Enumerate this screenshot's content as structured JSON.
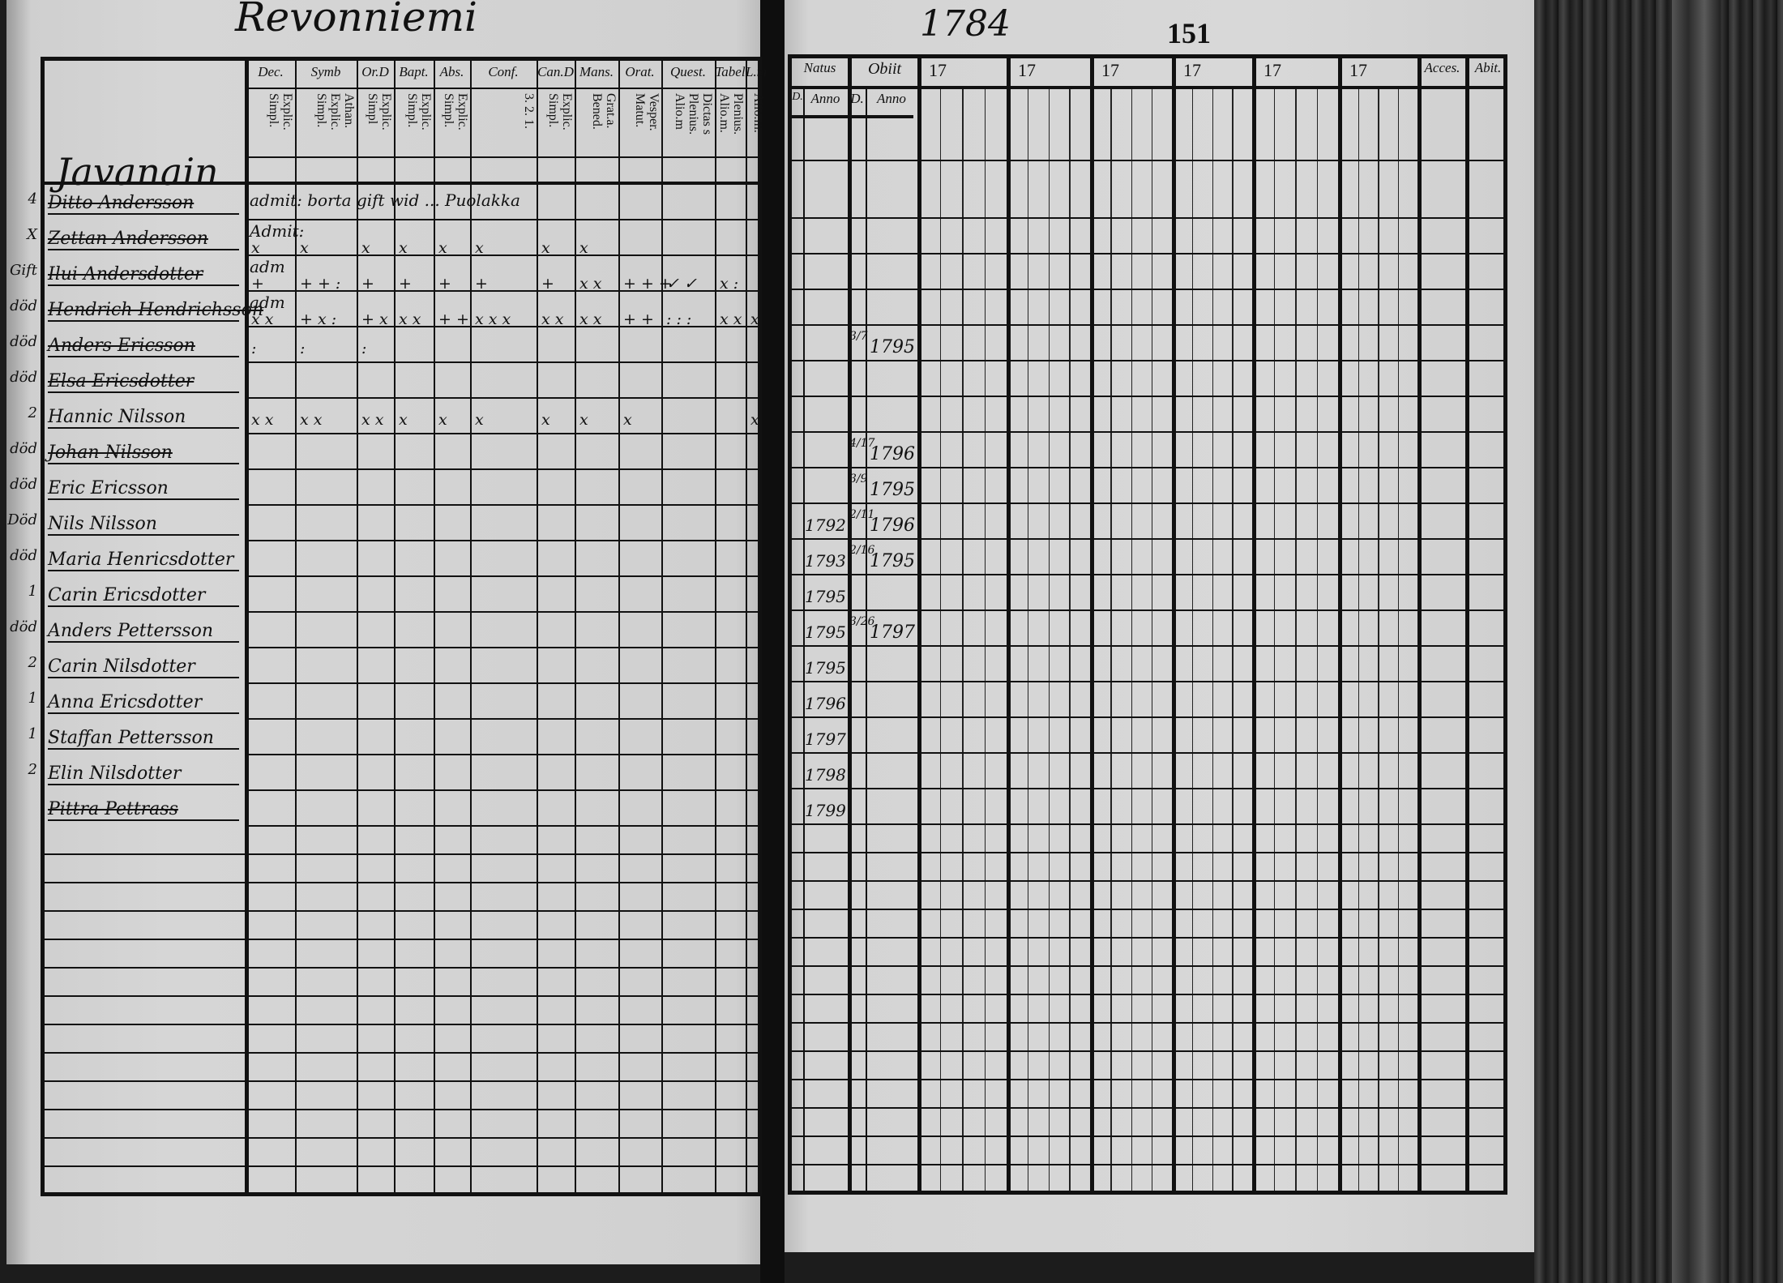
{
  "page_header": {
    "parish": "Revonniemi",
    "year": "1784",
    "page_number": "151"
  },
  "left_table": {
    "village": "Javanain",
    "columns": [
      {
        "label": "Dec.",
        "sub": "Explic. Simpl."
      },
      {
        "label": "Symb",
        "sub": "Athan. Explic. Simpl."
      },
      {
        "label": "Or.D",
        "sub": "Explic. Simpl"
      },
      {
        "label": "Bapt.",
        "sub": "Explic. Simpl."
      },
      {
        "label": "Abs.",
        "sub": "Explic. Simpl."
      },
      {
        "label": "Conf.",
        "sub": "3. 2. 1."
      },
      {
        "label": "Can.D",
        "sub": "Explic. Simpl."
      },
      {
        "label": "Mans.",
        "sub": "Grat.a. Bened."
      },
      {
        "label": "Orat.",
        "sub": "Vesper. Matut."
      },
      {
        "label": "Quest.",
        "sub": "Dictas s Plenius. Alio.m"
      },
      {
        "label": "Tabel",
        "sub": "Plenius. Alio.m."
      },
      {
        "label": "L.m.",
        "sub": "Alio.m."
      }
    ],
    "rows": [
      {
        "margin": "4",
        "name": "Ditto Andersson",
        "struck": true,
        "note": "admit: borta gift wid ... Puolakka",
        "pre": "",
        "marks": [
          "",
          "",
          "",
          "",
          "",
          "",
          "",
          "",
          "",
          "",
          "",
          ""
        ]
      },
      {
        "margin": "X",
        "name": "Zettan Andersson",
        "struck": true,
        "note": "",
        "pre": "Admit:",
        "marks": [
          "x",
          "x",
          "x",
          "x",
          "x",
          "x",
          "x",
          "x",
          "",
          "",
          "",
          ""
        ]
      },
      {
        "margin": "Gift",
        "name": "Ilui Andersdotter",
        "struck": true,
        "note": "",
        "pre": "adm",
        "marks": [
          "+",
          "+ + :",
          "+",
          "+",
          "+",
          "+",
          "+",
          "x x",
          "+ + +",
          "✓ ✓",
          "x :",
          ""
        ]
      },
      {
        "margin": "död",
        "name": "Hendrich Hendrichsson",
        "struck": true,
        "note": "",
        "pre": "adm",
        "marks": [
          "x x",
          "+ x :",
          "+ x",
          "x x",
          "+ +",
          "x x x",
          "x x",
          "x x",
          "+ +",
          ": : :",
          "x x",
          "x"
        ]
      },
      {
        "margin": "död",
        "name": "Anders Ericsson",
        "struck": true,
        "note": "",
        "pre": "",
        "marks": [
          ":",
          ":",
          ":",
          "",
          "",
          "",
          "",
          "",
          "",
          "",
          "",
          ""
        ]
      },
      {
        "margin": "död",
        "name": "Elsa Ericsdotter",
        "struck": true,
        "note": "",
        "pre": "",
        "marks": [
          "",
          "",
          "",
          "",
          "",
          "",
          "",
          "",
          "",
          "",
          "",
          ""
        ]
      },
      {
        "margin": "2",
        "name": "Hannic Nilsson",
        "struck": false,
        "note": "",
        "pre": "",
        "marks": [
          "x x",
          "x x",
          "x x",
          "x",
          "x",
          "x",
          "x",
          "x",
          "x",
          "",
          "",
          "x"
        ]
      },
      {
        "margin": "död",
        "name": "Johan Nilsson",
        "struck": true,
        "note": "",
        "pre": "",
        "marks": [
          "",
          "",
          "",
          "",
          "",
          "",
          "",
          "",
          "",
          "",
          "",
          ""
        ]
      },
      {
        "margin": "död",
        "name": "Eric Ericsson",
        "struck": false,
        "note": "",
        "pre": "",
        "marks": [
          "",
          "",
          "",
          "",
          "",
          "",
          "",
          "",
          "",
          "",
          "",
          ""
        ]
      },
      {
        "margin": "Död",
        "name": "Nils Nilsson",
        "struck": false,
        "note": "",
        "pre": "",
        "marks": [
          "",
          "",
          "",
          "",
          "",
          "",
          "",
          "",
          "",
          "",
          "",
          ""
        ]
      },
      {
        "margin": "död",
        "name": "Maria Henricsdotter",
        "struck": false,
        "note": "",
        "pre": "",
        "marks": [
          "",
          "",
          "",
          "",
          "",
          "",
          "",
          "",
          "",
          "",
          "",
          ""
        ]
      },
      {
        "margin": "1",
        "name": "Carin Ericsdotter",
        "struck": false,
        "note": "",
        "pre": "",
        "marks": [
          "",
          "",
          "",
          "",
          "",
          "",
          "",
          "",
          "",
          "",
          "",
          ""
        ]
      },
      {
        "margin": "död",
        "name": "Anders Pettersson",
        "struck": false,
        "note": "",
        "pre": "",
        "marks": [
          "",
          "",
          "",
          "",
          "",
          "",
          "",
          "",
          "",
          "",
          "",
          ""
        ]
      },
      {
        "margin": "2",
        "name": "Carin Nilsdotter",
        "struck": false,
        "note": "",
        "pre": "",
        "marks": [
          "",
          "",
          "",
          "",
          "",
          "",
          "",
          "",
          "",
          "",
          "",
          ""
        ]
      },
      {
        "margin": "1",
        "name": "Anna Ericsdotter",
        "struck": false,
        "note": "",
        "pre": "",
        "marks": [
          "",
          "",
          "",
          "",
          "",
          "",
          "",
          "",
          "",
          "",
          "",
          ""
        ]
      },
      {
        "margin": "1",
        "name": "Staffan Pettersson",
        "struck": false,
        "note": "",
        "pre": "",
        "marks": [
          "",
          "",
          "",
          "",
          "",
          "",
          "",
          "",
          "",
          "",
          "",
          ""
        ]
      },
      {
        "margin": "2",
        "name": "Elin Nilsdotter",
        "struck": false,
        "note": "",
        "pre": "",
        "marks": [
          "",
          "",
          "",
          "",
          "",
          "",
          "",
          "",
          "",
          "",
          "",
          ""
        ]
      },
      {
        "margin": "",
        "name": "Pittra Pettrass",
        "struck": true,
        "note": "",
        "pre": "",
        "marks": [
          "",
          "",
          "",
          "",
          "",
          "",
          "",
          "",
          "",
          "",
          "",
          ""
        ]
      }
    ]
  },
  "right_table": {
    "natus": {
      "label": "Natus",
      "d": "D.",
      "anno": "Anno"
    },
    "obiit": {
      "label": "Obiit",
      "d": "D.",
      "anno": "Anno"
    },
    "year_columns": [
      "17",
      "17",
      "17",
      "17",
      "17",
      "17"
    ],
    "acces": "Acces.",
    "abit": "Abit.",
    "rows": [
      {
        "natus": "",
        "obiit_d": "",
        "obiit_anno": ""
      },
      {
        "natus": "",
        "obiit_d": "",
        "obiit_anno": ""
      },
      {
        "natus": "",
        "obiit_d": "",
        "obiit_anno": ""
      },
      {
        "natus": "",
        "obiit_d": "",
        "obiit_anno": ""
      },
      {
        "natus": "",
        "obiit_d": "3/7",
        "obiit_anno": "1795"
      },
      {
        "natus": "",
        "obiit_d": "",
        "obiit_anno": ""
      },
      {
        "natus": "",
        "obiit_d": "",
        "obiit_anno": ""
      },
      {
        "natus": "",
        "obiit_d": "4/17",
        "obiit_anno": "1796"
      },
      {
        "natus": "",
        "obiit_d": "3/9",
        "obiit_anno": "1795"
      },
      {
        "natus": "1792",
        "obiit_d": "2/11",
        "obiit_anno": "1796"
      },
      {
        "natus": "1793",
        "obiit_d": "2/16",
        "obiit_anno": "1795"
      },
      {
        "natus": "1795",
        "obiit_d": "",
        "obiit_anno": ""
      },
      {
        "natus": "1795",
        "obiit_d": "3/26",
        "obiit_anno": "1797"
      },
      {
        "natus": "1795",
        "obiit_d": "",
        "obiit_anno": ""
      },
      {
        "natus": "1796",
        "obiit_d": "",
        "obiit_anno": ""
      },
      {
        "natus": "1797",
        "obiit_d": "",
        "obiit_anno": ""
      },
      {
        "natus": "1798",
        "obiit_d": "",
        "obiit_anno": ""
      },
      {
        "natus": "1799",
        "obiit_d": "",
        "obiit_anno": ""
      }
    ]
  }
}
